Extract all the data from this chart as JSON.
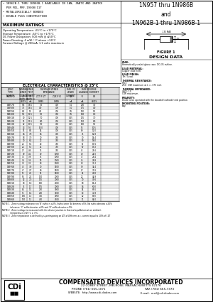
{
  "title_right": "1N957 thru 1N986B\nand\n1N962B-1 thru 1N986B-1",
  "bullet_points": [
    "• 1N962B-1 THRU 1N986B-1 AVAILABLE IN JAN, JANTX AND JANTXV",
    "  PER MIL-PRF-19500/117",
    "• METALLURGICALLY BONDED",
    "• DOUBLE PLUG CONSTRUCTION"
  ],
  "max_ratings_title": "MAXIMUM RATINGS",
  "max_ratings": [
    "Operating Temperature: -65°C to +175°C",
    "Storage Temperature: -65°C to +175°C",
    "DC Power Dissipation: 500 mW @ ≤50°C",
    "Power Derating: 4 mW / °C above +50°C",
    "Forward Voltage @ 200mA: 1.1 volts maximum"
  ],
  "elec_char_title": "ELECTRICAL CHARACTERISTICS @ 25°C",
  "table_data": [
    [
      "1N957B",
      "6.8",
      "18.5",
      "3.5",
      "700",
      "1.0",
      "200",
      "0.5",
      "3.0"
    ],
    [
      "1N958B",
      "7.5",
      "16.5",
      "4.0",
      "700",
      "1.0",
      "175",
      "0.5",
      "4.0"
    ],
    [
      "1N959B",
      "8.2",
      "15",
      "4.5",
      "700",
      "0.5",
      "150",
      "0.5",
      "5.0"
    ],
    [
      "1N960B",
      "9.1",
      "13.5",
      "5.0",
      "700",
      "0.5",
      "130",
      "0.5",
      "6.0"
    ],
    [
      "1N961B",
      "10",
      "12.5",
      "7.0",
      "700",
      "0.25",
      "125",
      "0.5",
      "7.0"
    ],
    [
      "1N962B",
      "11",
      "11.5",
      "8.0",
      "700",
      "0.25",
      "110",
      "0.5",
      "8.0"
    ],
    [
      "1N963B",
      "12",
      "10.5",
      "9.0",
      "700",
      "0.25",
      "100",
      "0.5",
      "9.5"
    ],
    [
      "1N964B",
      "13",
      "9.5",
      "10.0",
      "700",
      "0.25",
      "95",
      "0.5",
      "10.5"
    ],
    [
      "1N965B",
      "15",
      "8.5",
      "14",
      "700",
      "0.25",
      "80",
      "0.5",
      "12.0"
    ],
    [
      "1N966B",
      "16",
      "7.8",
      "16",
      "700",
      "0.25",
      "75",
      "0.5",
      "12.8"
    ],
    [
      "1N967B",
      "18",
      "7.0",
      "20",
      "750",
      "0.25",
      "70",
      "0.5",
      "14.4"
    ],
    [
      "1N968B",
      "20",
      "6.2",
      "22",
      "750",
      "0.25",
      "60",
      "0.5",
      "16.0"
    ],
    [
      "1N969B",
      "22",
      "5.6",
      "23",
      "750",
      "0.25",
      "55",
      "0.5",
      "17.6"
    ],
    [
      "1N970B",
      "24",
      "5.2",
      "25",
      "750",
      "0.25",
      "50",
      "0.5",
      "19.2"
    ],
    [
      "1N971B",
      "27",
      "4.6",
      "35",
      "750",
      "0.25",
      "45",
      "0.5",
      "21.6"
    ],
    [
      "1N972B",
      "30",
      "4.2",
      "40",
      "1000",
      "0.25",
      "40",
      "0.5",
      "24.0"
    ],
    [
      "1N973B",
      "33",
      "3.8",
      "45",
      "1000",
      "0.25",
      "37",
      "0.5",
      "26.4"
    ],
    [
      "1N974B",
      "36",
      "3.4",
      "50",
      "1000",
      "0.25",
      "34",
      "0.5",
      "28.8"
    ],
    [
      "1N975B",
      "39",
      "3.2",
      "60",
      "1000",
      "0.25",
      "32",
      "0.5",
      "31.2"
    ],
    [
      "1N976B",
      "43",
      "3.0",
      "70",
      "1500",
      "0.25",
      "30",
      "0.5",
      "34.4"
    ],
    [
      "1N977B",
      "47",
      "2.7",
      "80",
      "1500",
      "0.25",
      "27",
      "0.5",
      "37.6"
    ],
    [
      "1N978B",
      "51",
      "2.5",
      "95",
      "1500",
      "0.25",
      "25",
      "0.5",
      "40.8"
    ],
    [
      "1N979B",
      "56",
      "2.2",
      "110",
      "2000",
      "0.25",
      "22",
      "0.5",
      "44.8"
    ],
    [
      "1N980B",
      "62",
      "2.0",
      "125",
      "2000",
      "0.25",
      "20",
      "0.5",
      "49.6"
    ],
    [
      "1N981B",
      "68",
      "1.8",
      "150",
      "2000",
      "0.25",
      "18",
      "0.5",
      "54.4"
    ],
    [
      "1N982B",
      "75",
      "1.7",
      "175",
      "2000",
      "0.25",
      "16",
      "0.5",
      "60.0"
    ],
    [
      "1N983B",
      "82",
      "1.5",
      "200",
      "3000",
      "0.25",
      "14",
      "0.5",
      "65.6"
    ],
    [
      "1N984B",
      "91",
      "1.4",
      "250",
      "3500",
      "0.25",
      "13",
      "0.5",
      "72.8"
    ],
    [
      "1N985B",
      "100",
      "1.3",
      "350",
      "4000",
      "0.25",
      "12",
      "0.5",
      "80.0"
    ],
    [
      "1N986B",
      "110",
      "1.1",
      "450",
      "4500",
      "0.25",
      "11",
      "0.5",
      "84.0"
    ]
  ],
  "notes": [
    "NOTE 1   Zener voltage tolerance on 'B' suffix is ±2%. Suffix letter 'A' denotes ±5%. No suffix denotes ±20%\n             tolerance. 'C' suffix denotes ±2% and 'D' suffix denotes ±1%.",
    "NOTE 2   Zener voltage is measured with the device junction in thermal equilibrium at an ambient\n             temperature of 25°C ± 3°C.",
    "NOTE 3   Zener impedance is defined by superimposing on IZT a 60Hz rms a.c. current equal to 10% of I ZT"
  ],
  "design_data_title": "DESIGN DATA",
  "figure1_label": "FIGURE 1",
  "design_data": [
    [
      "CASE:",
      "Hermetically sealed glass case, DO-35 outline."
    ],
    [
      "LEAD MATERIAL:",
      "Copper clad steel."
    ],
    [
      "LEAD FINISH:",
      "Tin / Lead."
    ],
    [
      "THERMAL RESISTANCE:",
      "(θJC):\n250  C/W maximum at L = .375 inch"
    ],
    [
      "THERMAL IMPEDANCE:",
      "(θJC): 15\nC/W maximum."
    ],
    [
      "POLARITY:",
      "Diode to be operated with the banded (cathode) end positive."
    ],
    [
      "MOUNTING POSITION:",
      "Any."
    ]
  ],
  "footer_company": "COMPENSATED DEVICES INCORPORATED",
  "footer_address": "22 COREY STREET, MELROSE, MASSACHUSETTS 02176",
  "footer_phone": "PHONE (781) 665-1071",
  "footer_fax": "FAX (781) 665-7373",
  "footer_web": "WEBSITE:  http://www.cdi-diodes.com",
  "footer_email": "E-mail:  mail@cdi-diodes.com"
}
